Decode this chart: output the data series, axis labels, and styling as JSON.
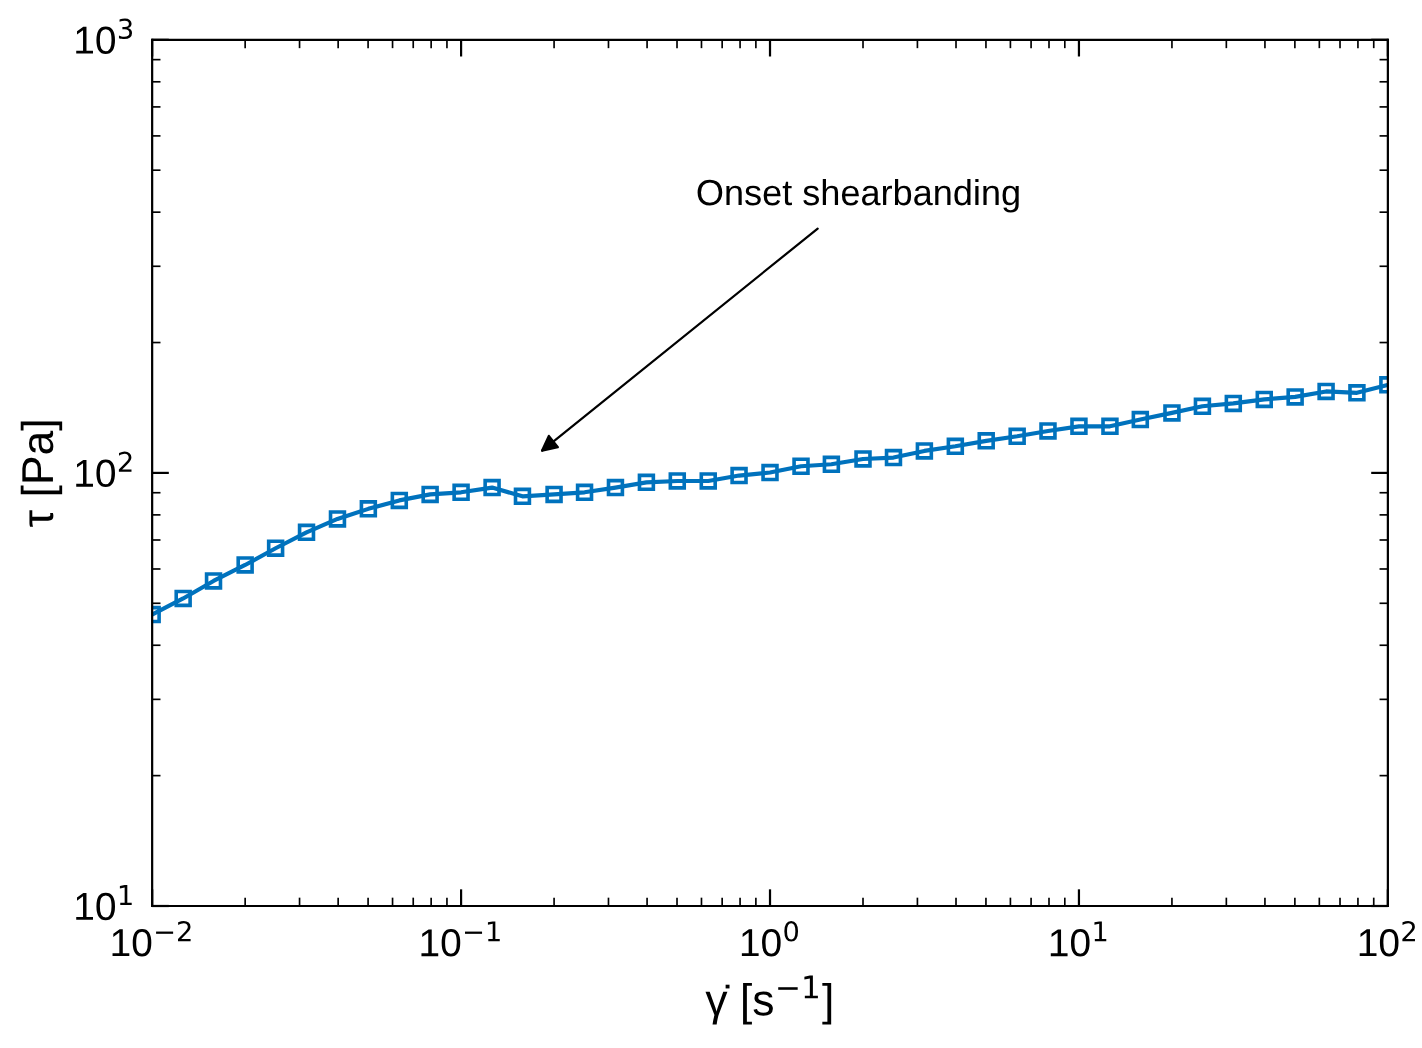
{
  "chart_data": {
    "type": "line",
    "xlabel": "γ̇ [s$^{−1}$]",
    "ylabel": "τ [Pa]",
    "log": "xy",
    "grid": false,
    "legend": false,
    "marker": "square",
    "line_style": "solid",
    "x": [
      0.01,
      0.0126,
      0.0158,
      0.02,
      0.0251,
      0.0316,
      0.0398,
      0.0501,
      0.0631,
      0.0794,
      0.1,
      0.126,
      0.158,
      0.2,
      0.251,
      0.316,
      0.398,
      0.501,
      0.631,
      0.794,
      1,
      1.26,
      1.58,
      2,
      2.51,
      3.16,
      3.98,
      5.01,
      6.31,
      7.94,
      10,
      12.6,
      15.8,
      20,
      25.1,
      31.6,
      39.8,
      50.1,
      63.1,
      79.4,
      100
    ],
    "series": [
      {
        "color": "#0072bd",
        "values": [
          47.1,
          51.3,
          56.3,
          61.3,
          67.0,
          72.9,
          78.3,
          82.6,
          86.4,
          89.2,
          90.2,
          92.5,
          88.3,
          89.2,
          90.2,
          92.5,
          95.1,
          95.8,
          95.8,
          98.6,
          100.2,
          103.6,
          104.7,
          107.7,
          108.5,
          112.4,
          115.2,
          118.6,
          121.5,
          125.0,
          128.1,
          128.1,
          132.8,
          137.6,
          142.5,
          144.7,
          147.8,
          149.8,
          154.2,
          153.1,
          159.7
        ]
      }
    ],
    "xlim": [
      0.01,
      100
    ],
    "ylim": [
      10,
      1000
    ],
    "xticks": [
      {
        "value": 0.01,
        "label": "10$^{−2}$"
      },
      {
        "value": 0.1,
        "label": "10$^{−1}$"
      },
      {
        "value": 1,
        "label": "10$^{0}$"
      },
      {
        "value": 10,
        "label": "10$^{1}$"
      },
      {
        "value": 100,
        "label": "10$^{2}$"
      }
    ],
    "yticks": [
      {
        "value": 10,
        "label": "10$^{1}$"
      },
      {
        "value": 100,
        "label": "10$^{2}$"
      },
      {
        "value": 1000,
        "label": "10$^{3}$"
      }
    ],
    "annotations": [
      "Onset shearbanding"
    ]
  }
}
